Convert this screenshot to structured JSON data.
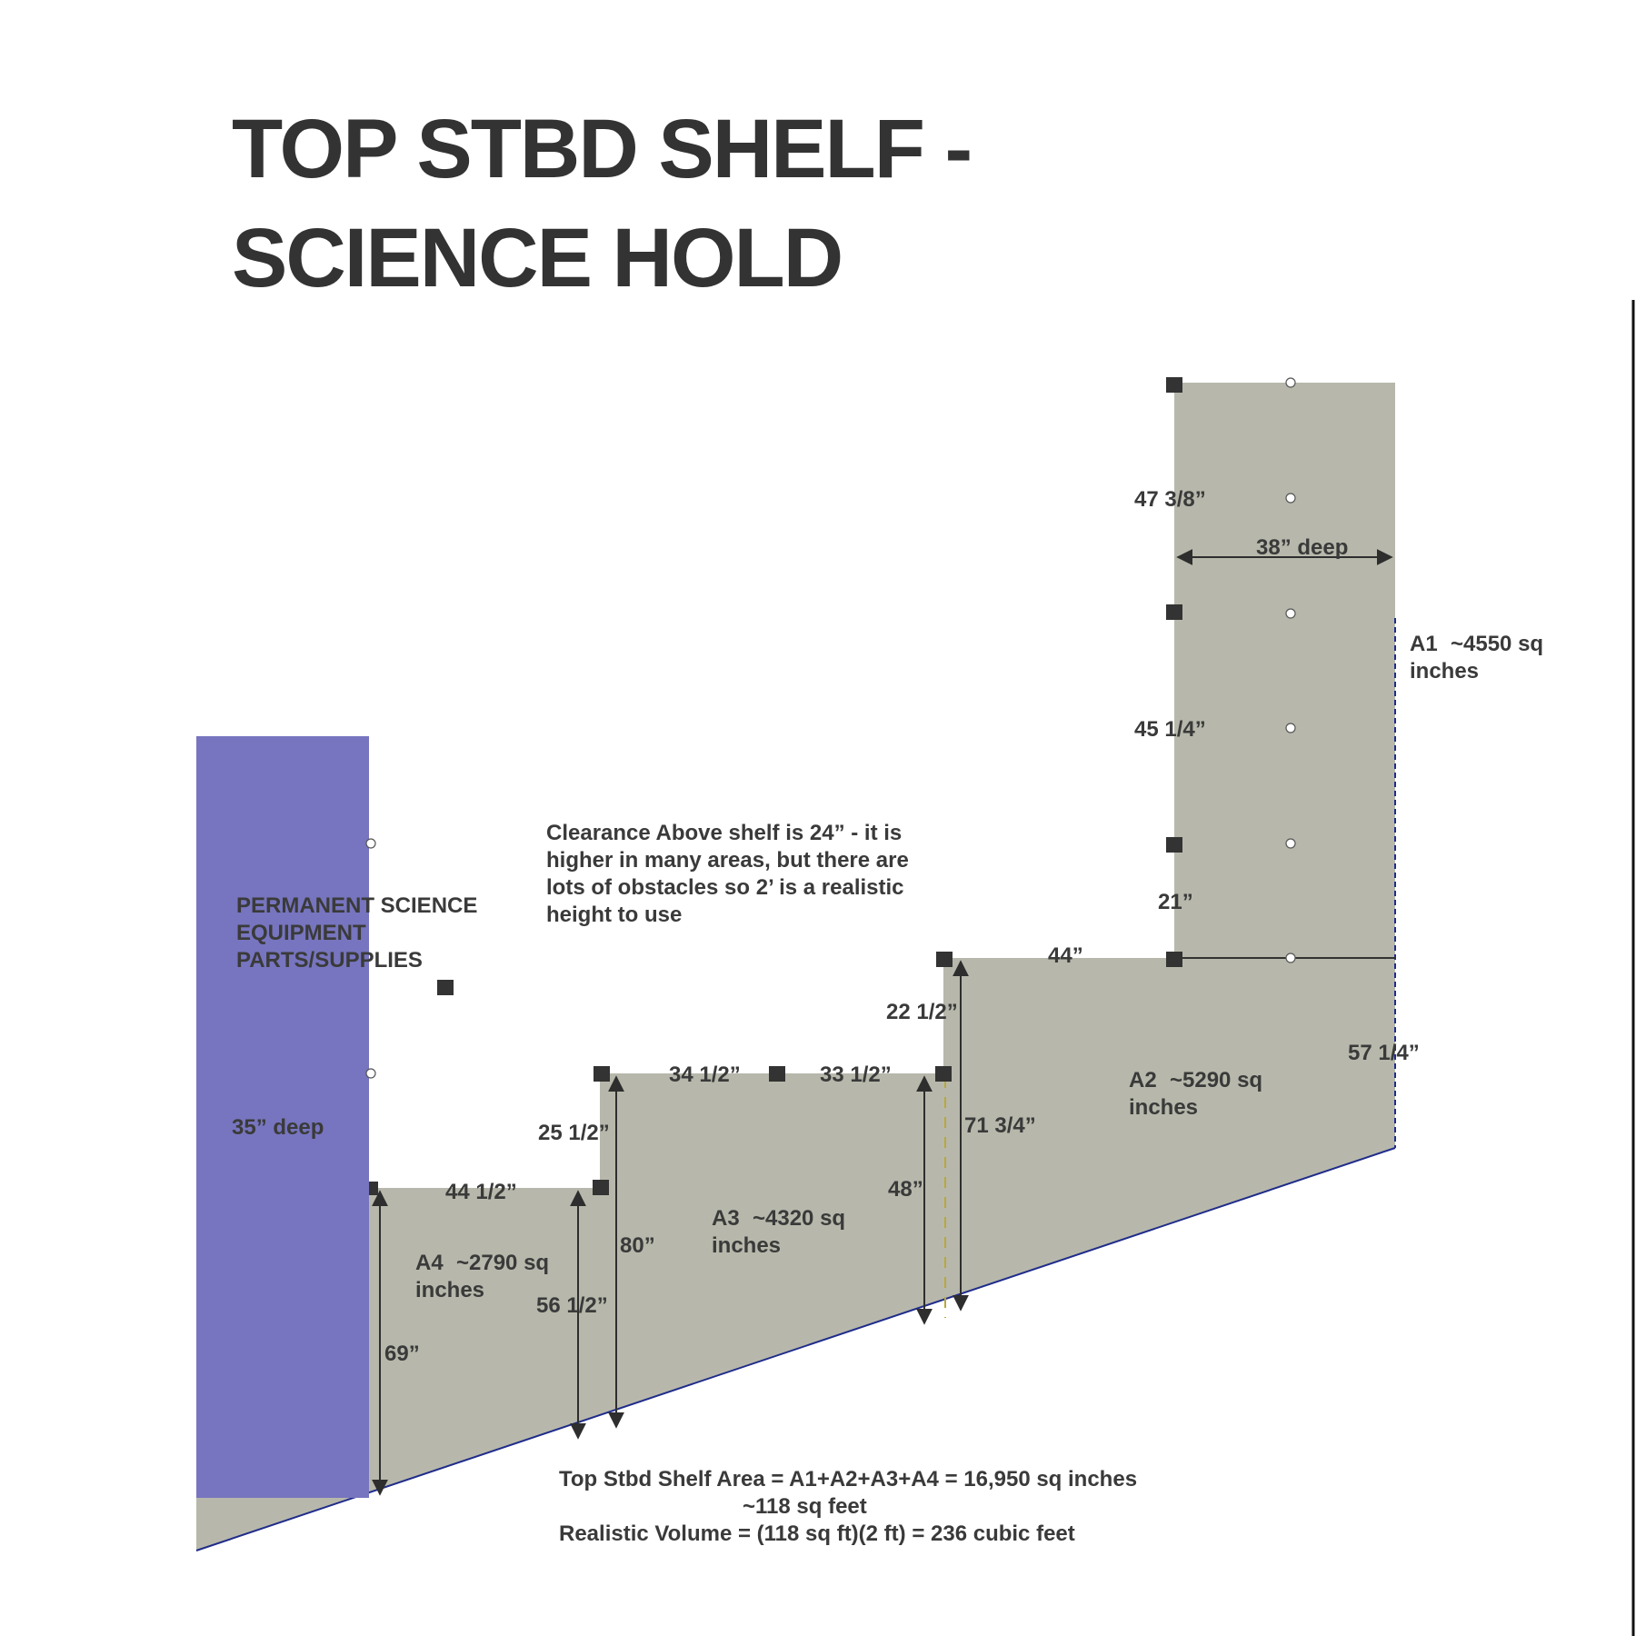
{
  "title": {
    "line1": "TOP STBD SHELF -",
    "line2": "SCIENCE HOLD"
  },
  "colors": {
    "shelf": "#b7b8ab",
    "equipment_block": "#7775bf",
    "text": "#3a3a3a",
    "edge_line": "#1f2c8a"
  },
  "equipment": {
    "label_line1": "PERMANENT SCIENCE",
    "label_line2": "EQUIPMENT",
    "label_line3": "PARTS/SUPPLIES",
    "depth": "35” deep"
  },
  "clearance_note": {
    "line1": "Clearance Above shelf is 24” - it is",
    "line2": "higher in many areas, but there are",
    "line3": "lots of obstacles so 2’ is a realistic",
    "line4": "height to use"
  },
  "areas": {
    "a1": {
      "name": "A1",
      "value": "~4550 sq",
      "unit": "inches"
    },
    "a2": {
      "name": "A2",
      "value": "~5290 sq",
      "unit": "inches"
    },
    "a3": {
      "name": "A3",
      "value": "~4320 sq",
      "unit": "inches"
    },
    "a4": {
      "name": "A4",
      "value": "~2790 sq",
      "unit": "inches"
    }
  },
  "dimensions": {
    "d47_3_8": "47 3/8”",
    "d38_deep": "38” deep",
    "d45_1_4": "45 1/4”",
    "d21": "21”",
    "d44": "44”",
    "d57_1_4": "57 1/4”",
    "d22_1_2": "22 1/2”",
    "d71_3_4": "71 3/4”",
    "d34_1_2": "34 1/2”",
    "d33_1_2": "33 1/2”",
    "d25_1_2": "25 1/2”",
    "d48": "48”",
    "d80": "80”",
    "d44_1_2": "44 1/2”",
    "d56_1_2": "56 1/2”",
    "d69": "69”"
  },
  "summary": {
    "line1": "Top Stbd Shelf Area = A1+A2+A3+A4 = 16,950 sq inches",
    "line2": "~118 sq feet",
    "line3": "Realistic Volume = (118 sq ft)(2 ft) = 236 cubic feet"
  }
}
